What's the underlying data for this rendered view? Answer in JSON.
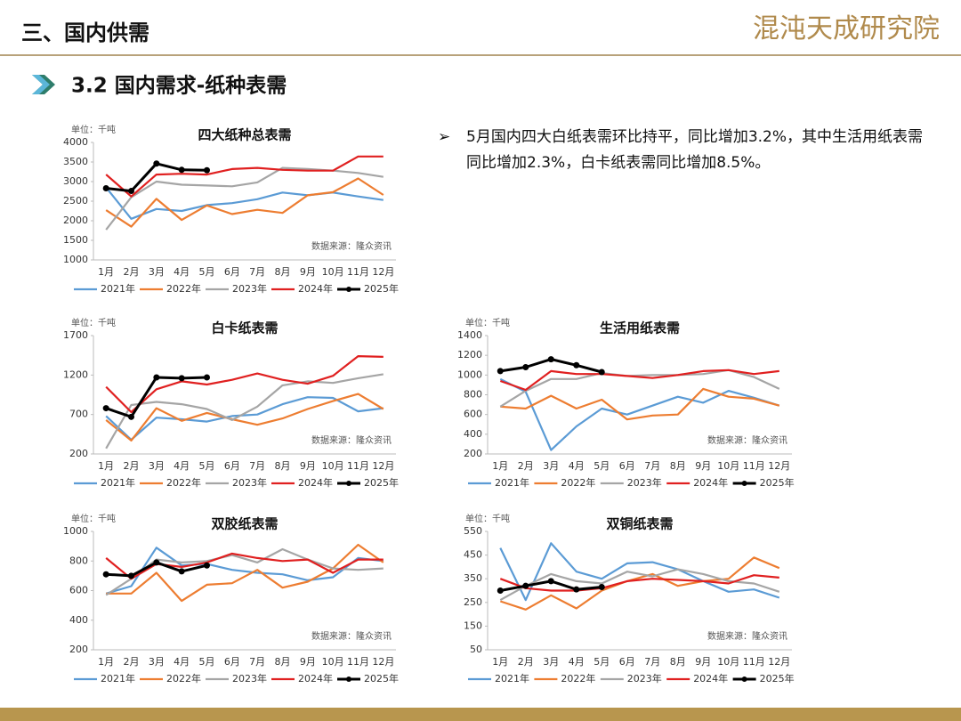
{
  "header": {
    "section": "三、国内供需",
    "logo": "混沌天成研究院"
  },
  "subtitle": "3.2 国内需求-纸种表需",
  "bullet": "5月国内四大白纸表需环比持平，同比增加3.2%，其中生活用纸表需同比增加2.3%，白卡纸表需同比增加8.5%。",
  "chart_data": [
    {
      "type": "line",
      "title": "四大纸种总表需",
      "unit_label": "单位：千吨",
      "source": "数据来源：隆众资讯",
      "categories": [
        "1月",
        "2月",
        "3月",
        "4月",
        "5月",
        "6月",
        "7月",
        "8月",
        "9月",
        "10月",
        "11月",
        "12月"
      ],
      "ylim": [
        1000,
        4000
      ],
      "yticks": [
        1000,
        1500,
        2000,
        2500,
        3000,
        3500,
        4000
      ],
      "series": [
        {
          "name": "2021年",
          "color": "#5b9bd5",
          "values": [
            2850,
            2050,
            2300,
            2250,
            2400,
            2450,
            2550,
            2720,
            2650,
            2720,
            2620,
            2530
          ]
        },
        {
          "name": "2022年",
          "color": "#ed7d31",
          "values": [
            2270,
            1850,
            2560,
            2020,
            2390,
            2170,
            2280,
            2200,
            2650,
            2730,
            3080,
            2660
          ]
        },
        {
          "name": "2023年",
          "color": "#a5a5a5",
          "values": [
            1770,
            2600,
            3000,
            2920,
            2900,
            2880,
            2980,
            3350,
            3320,
            3280,
            3220,
            3120
          ]
        },
        {
          "name": "2024年",
          "color": "#e02020",
          "values": [
            3180,
            2620,
            3180,
            3200,
            3180,
            3320,
            3350,
            3300,
            3280,
            3280,
            3640,
            3640
          ]
        },
        {
          "name": "2025年",
          "color": "#000000",
          "values": [
            2830,
            2760,
            3460,
            3300,
            3290,
            null,
            null,
            null,
            null,
            null,
            null,
            null
          ]
        }
      ]
    },
    {
      "type": "line",
      "title": "白卡纸表需",
      "unit_label": "单位：千吨",
      "source": "数据来源：隆众资讯",
      "categories": [
        "1月",
        "2月",
        "3月",
        "4月",
        "5月",
        "6月",
        "7月",
        "8月",
        "9月",
        "10月",
        "11月",
        "12月"
      ],
      "ylim": [
        200,
        1700
      ],
      "yticks": [
        200,
        700,
        1200,
        1700
      ],
      "series": [
        {
          "name": "2021年",
          "color": "#5b9bd5",
          "values": [
            680,
            380,
            660,
            640,
            610,
            680,
            700,
            830,
            920,
            910,
            740,
            780
          ]
        },
        {
          "name": "2022年",
          "color": "#ed7d31",
          "values": [
            630,
            370,
            780,
            620,
            720,
            640,
            570,
            650,
            770,
            870,
            960,
            770
          ]
        },
        {
          "name": "2023年",
          "color": "#a5a5a5",
          "values": [
            270,
            820,
            860,
            830,
            770,
            630,
            800,
            1070,
            1120,
            1100,
            1160,
            1210
          ]
        },
        {
          "name": "2024年",
          "color": "#e02020",
          "values": [
            1050,
            730,
            1020,
            1120,
            1080,
            1140,
            1220,
            1140,
            1090,
            1190,
            1440,
            1430
          ]
        },
        {
          "name": "2025年",
          "color": "#000000",
          "values": [
            780,
            670,
            1170,
            1160,
            1170,
            null,
            null,
            null,
            null,
            null,
            null,
            null
          ]
        }
      ]
    },
    {
      "type": "line",
      "title": "生活用纸表需",
      "unit_label": "单位：千吨",
      "source": "数据来源：隆众资讯",
      "categories": [
        "1月",
        "2月",
        "3月",
        "4月",
        "5月",
        "6月",
        "7月",
        "8月",
        "9月",
        "10月",
        "11月",
        "12月"
      ],
      "ylim": [
        200,
        1400
      ],
      "yticks": [
        200,
        400,
        600,
        800,
        1000,
        1200,
        1400
      ],
      "series": [
        {
          "name": "2021年",
          "color": "#5b9bd5",
          "values": [
            960,
            830,
            240,
            480,
            660,
            600,
            690,
            780,
            720,
            840,
            770,
            690
          ]
        },
        {
          "name": "2022年",
          "color": "#ed7d31",
          "values": [
            680,
            660,
            790,
            660,
            750,
            550,
            590,
            600,
            860,
            780,
            760,
            690
          ]
        },
        {
          "name": "2023年",
          "color": "#a5a5a5",
          "values": [
            680,
            840,
            960,
            960,
            1020,
            990,
            1000,
            1000,
            1010,
            1050,
            980,
            860
          ]
        },
        {
          "name": "2024年",
          "color": "#e02020",
          "values": [
            940,
            850,
            1040,
            1010,
            1010,
            990,
            970,
            1000,
            1040,
            1050,
            1010,
            1040
          ]
        },
        {
          "name": "2025年",
          "color": "#000000",
          "values": [
            1040,
            1080,
            1160,
            1100,
            1030,
            null,
            null,
            null,
            null,
            null,
            null,
            null
          ]
        }
      ]
    },
    {
      "type": "line",
      "title": "双胶纸表需",
      "unit_label": "单位：千吨",
      "source": "数据来源：隆众资讯",
      "categories": [
        "1月",
        "2月",
        "3月",
        "4月",
        "5月",
        "6月",
        "7月",
        "8月",
        "9月",
        "10月",
        "11月",
        "12月"
      ],
      "ylim": [
        200,
        1000
      ],
      "yticks": [
        200,
        400,
        600,
        800,
        1000
      ],
      "series": [
        {
          "name": "2021年",
          "color": "#5b9bd5",
          "values": [
            580,
            630,
            890,
            770,
            780,
            740,
            720,
            710,
            670,
            690,
            820,
            800
          ]
        },
        {
          "name": "2022年",
          "color": "#ed7d31",
          "values": [
            580,
            580,
            720,
            530,
            640,
            650,
            740,
            620,
            660,
            750,
            910,
            790
          ]
        },
        {
          "name": "2023年",
          "color": "#a5a5a5",
          "values": [
            570,
            680,
            810,
            790,
            800,
            840,
            790,
            880,
            810,
            750,
            740,
            750
          ]
        },
        {
          "name": "2024年",
          "color": "#e02020",
          "values": [
            820,
            680,
            780,
            760,
            790,
            850,
            820,
            800,
            810,
            720,
            810,
            810
          ]
        },
        {
          "name": "2025年",
          "color": "#000000",
          "values": [
            710,
            700,
            790,
            730,
            770,
            null,
            null,
            null,
            null,
            null,
            null,
            null
          ]
        }
      ]
    },
    {
      "type": "line",
      "title": "双铜纸表需",
      "unit_label": "单位：千吨",
      "source": "数据来源：隆众资讯",
      "categories": [
        "1月",
        "2月",
        "3月",
        "4月",
        "5月",
        "6月",
        "7月",
        "8月",
        "9月",
        "10月",
        "11月",
        "12月"
      ],
      "ylim": [
        50,
        550
      ],
      "yticks": [
        50,
        150,
        250,
        350,
        450,
        550
      ],
      "series": [
        {
          "name": "2021年",
          "color": "#5b9bd5",
          "values": [
            480,
            260,
            500,
            380,
            350,
            415,
            420,
            390,
            340,
            295,
            305,
            270
          ]
        },
        {
          "name": "2022年",
          "color": "#ed7d31",
          "values": [
            255,
            220,
            280,
            225,
            300,
            340,
            370,
            320,
            340,
            350,
            440,
            395
          ]
        },
        {
          "name": "2023年",
          "color": "#a5a5a5",
          "values": [
            260,
            320,
            370,
            340,
            330,
            380,
            360,
            390,
            370,
            340,
            330,
            295
          ]
        },
        {
          "name": "2024年",
          "color": "#e02020",
          "values": [
            350,
            310,
            300,
            300,
            310,
            340,
            350,
            345,
            340,
            330,
            365,
            355
          ]
        },
        {
          "name": "2025年",
          "color": "#000000",
          "values": [
            300,
            320,
            340,
            305,
            315,
            null,
            null,
            null,
            null,
            null,
            null,
            null
          ]
        }
      ]
    }
  ]
}
